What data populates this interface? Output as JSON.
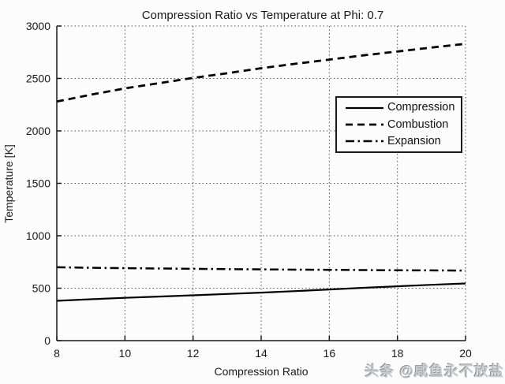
{
  "chart_data": {
    "type": "line",
    "title": "Compression Ratio vs Temperature at Phi: 0.7",
    "xlabel": "Compression Ratio",
    "ylabel": "Temperature [K]",
    "xlim": [
      8,
      20
    ],
    "ylim": [
      0,
      3000
    ],
    "xticks": [
      8,
      10,
      12,
      14,
      16,
      18,
      20
    ],
    "yticks": [
      0,
      500,
      1000,
      1500,
      2000,
      2500,
      3000
    ],
    "grid": true,
    "grid_style": "dotted",
    "legend_position": "inside upper right",
    "line_color": "#000000",
    "x": [
      8,
      9,
      10,
      11,
      12,
      13,
      14,
      15,
      16,
      17,
      18,
      19,
      20
    ],
    "series": [
      {
        "name": "Compression",
        "style": "solid",
        "values": [
          380,
          395,
          408,
          420,
          432,
          445,
          458,
          472,
          488,
          504,
          518,
          532,
          545
        ]
      },
      {
        "name": "Combustion",
        "style": "dashed",
        "values": [
          2280,
          2345,
          2405,
          2455,
          2505,
          2550,
          2598,
          2640,
          2680,
          2720,
          2757,
          2795,
          2830
        ]
      },
      {
        "name": "Expansion",
        "style": "dashdot",
        "values": [
          700,
          695,
          691,
          688,
          685,
          682,
          680,
          677,
          675,
          673,
          671,
          670,
          668
        ]
      }
    ]
  },
  "watermark": {
    "text": "头条 @咸鱼永不放盐"
  },
  "colors": {
    "background": "#fcfcfc",
    "line": "#000000",
    "grid": "#555555",
    "text": "#1a1a1a"
  }
}
